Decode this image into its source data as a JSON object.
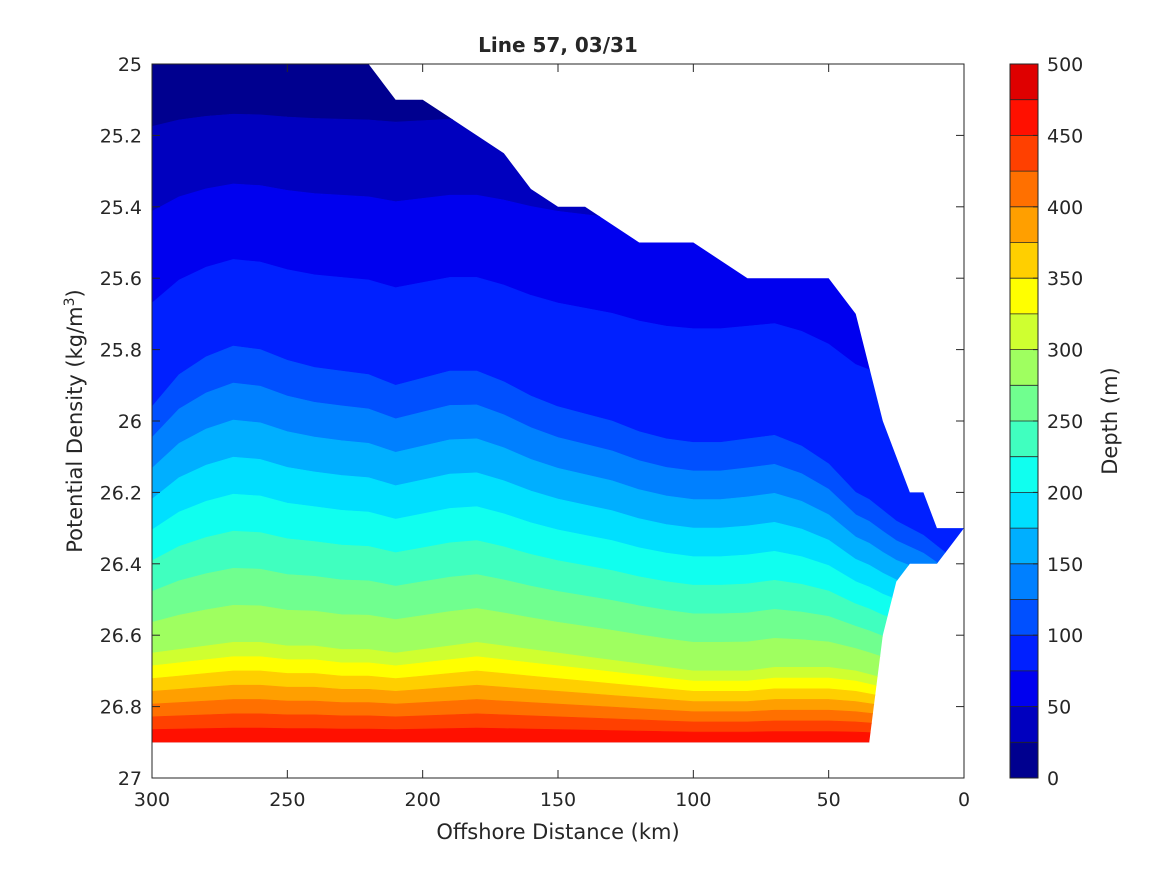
{
  "chart_data": {
    "type": "heatmap",
    "title": "Line 57, 03/31",
    "xlabel": "Offshore Distance (km)",
    "ylabel": "Potential Density (kg/m",
    "ylabel_sup": "3",
    "ylabel_close": ")",
    "colorbar_label": "Depth (m)",
    "xlim": [
      300,
      0
    ],
    "ylim": [
      27,
      25
    ],
    "x_reversed": true,
    "y_reversed": true,
    "x_ticks": [
      300,
      250,
      200,
      150,
      100,
      50,
      0
    ],
    "x_tick_labels": [
      "300",
      "250",
      "200",
      "150",
      "100",
      "50",
      "0"
    ],
    "y_ticks": [
      25,
      25.2,
      25.4,
      25.6,
      25.8,
      26,
      26.2,
      26.4,
      26.6,
      26.8,
      27
    ],
    "y_tick_labels": [
      "25",
      "25.2",
      "25.4",
      "25.6",
      "25.8",
      "26",
      "26.2",
      "26.4",
      "26.6",
      "26.8",
      "27"
    ],
    "colorbar_ticks": [
      0,
      50,
      100,
      150,
      200,
      250,
      300,
      350,
      400,
      450,
      500
    ],
    "colorbar_tick_labels": [
      "0",
      "50",
      "100",
      "150",
      "200",
      "250",
      "300",
      "350",
      "400",
      "450",
      "500"
    ],
    "contour_levels": [
      0,
      25,
      50,
      75,
      100,
      125,
      150,
      175,
      200,
      225,
      250,
      275,
      300,
      325,
      350,
      375,
      400,
      425,
      450,
      475,
      500
    ],
    "colormap": [
      "#00008f",
      "#0000bf",
      "#0000ef",
      "#0020ff",
      "#0050ff",
      "#0080ff",
      "#00afff",
      "#00dfff",
      "#10ffef",
      "#40ffbf",
      "#70ff8f",
      "#9fff60",
      "#cfff30",
      "#ffff00",
      "#ffcf00",
      "#ff9f00",
      "#ff7000",
      "#ff4000",
      "#ff1000",
      "#df0000"
    ],
    "grid": false,
    "x_nodes": [
      300,
      290,
      280,
      270,
      260,
      250,
      240,
      230,
      220,
      210,
      200,
      190,
      180,
      170,
      160,
      150,
      140,
      130,
      120,
      110,
      100,
      90,
      80,
      70,
      60,
      50,
      40,
      35,
      30,
      25,
      20,
      15,
      10,
      5,
      0
    ],
    "data_top_density": [
      25,
      25,
      25,
      25,
      25,
      25,
      25,
      25,
      25,
      25.1,
      25.1,
      25.15,
      25.2,
      25.25,
      25.35,
      25.4,
      25.4,
      25.45,
      25.5,
      25.5,
      25.5,
      25.55,
      25.6,
      25.6,
      25.6,
      25.6,
      25.7,
      25.85,
      26,
      26.1,
      26.2,
      26.2,
      26.3,
      26.3,
      26.3
    ],
    "data_bottom_density": [
      26.9,
      26.9,
      26.9,
      26.9,
      26.9,
      26.9,
      26.9,
      26.9,
      26.9,
      26.9,
      26.9,
      26.9,
      26.9,
      26.9,
      26.9,
      26.9,
      26.9,
      26.9,
      26.9,
      26.9,
      26.9,
      26.9,
      26.9,
      26.9,
      26.9,
      26.9,
      26.9,
      26.9,
      26.6,
      26.45,
      26.4,
      26.4,
      26.4,
      26.35,
      26.3
    ],
    "depth_contour_density_100m": [
      25.96,
      25.87,
      25.82,
      25.79,
      25.8,
      25.83,
      25.85,
      25.86,
      25.87,
      25.9,
      25.88,
      25.86,
      25.86,
      25.89,
      25.93,
      25.96,
      25.98,
      26,
      26.03,
      26.05,
      26.06,
      26.06,
      26.05,
      26.04,
      26.07,
      26.12,
      26.2,
      26.22,
      26.25,
      26.28,
      26.3,
      26.32,
      26.35,
      26.38,
      26.4
    ],
    "depth_contour_density_300m": [
      26.65,
      26.64,
      26.63,
      26.62,
      26.62,
      26.63,
      26.63,
      26.64,
      26.64,
      26.65,
      26.64,
      26.63,
      26.62,
      26.63,
      26.64,
      26.65,
      26.66,
      26.67,
      26.68,
      26.69,
      26.7,
      26.7,
      26.7,
      26.69,
      26.69,
      26.69,
      26.7,
      26.71,
      26.72,
      26.72,
      26.72,
      26.72,
      26.72,
      26.72,
      26.72
    ]
  }
}
